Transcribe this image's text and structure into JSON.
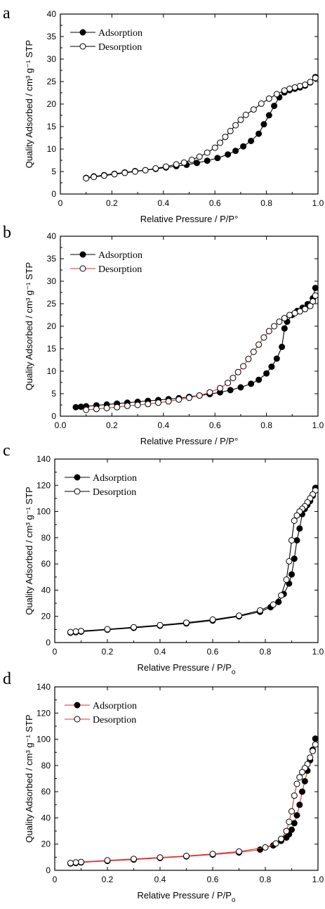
{
  "chart_data": [
    {
      "panel": "a",
      "type": "scatter",
      "xlabel": "Relative Pressure / P/P°",
      "ylabel": "Quality Adsorbed / cm³ g⁻¹ STP",
      "xlim": [
        0,
        1.0
      ],
      "ylim": [
        0,
        40
      ],
      "x_ticks": [
        "0",
        "0.2",
        "0.4",
        "0.6",
        "0.8",
        "1.0"
      ],
      "y_ticks": [
        "0",
        "5",
        "10",
        "15",
        "20",
        "25",
        "30",
        "35",
        "40"
      ],
      "legend_position": "top-left",
      "line_color": "#000000",
      "series": [
        {
          "name": "Adsorption",
          "marker": "filled-circle",
          "x": [
            0.1,
            0.13,
            0.17,
            0.21,
            0.25,
            0.29,
            0.33,
            0.37,
            0.41,
            0.45,
            0.49,
            0.53,
            0.57,
            0.61,
            0.65,
            0.68,
            0.71,
            0.74,
            0.77,
            0.79,
            0.81,
            0.83,
            0.85,
            0.87,
            0.89,
            0.91,
            0.93,
            0.95,
            0.97,
            0.99
          ],
          "y": [
            3.6,
            3.9,
            4.2,
            4.5,
            4.8,
            5.1,
            5.3,
            5.6,
            5.9,
            6.2,
            6.5,
            6.9,
            7.4,
            8.0,
            8.8,
            9.6,
            10.6,
            11.8,
            13.4,
            15.5,
            17.5,
            19.6,
            21.5,
            22.6,
            23.1,
            23.4,
            23.7,
            24.1,
            24.8,
            26.0
          ]
        },
        {
          "name": "Desorption",
          "marker": "open-circle",
          "x": [
            0.99,
            0.97,
            0.95,
            0.93,
            0.91,
            0.89,
            0.87,
            0.84,
            0.81,
            0.78,
            0.75,
            0.72,
            0.7,
            0.68,
            0.66,
            0.64,
            0.62,
            0.6,
            0.57,
            0.54,
            0.51,
            0.48,
            0.45,
            0.41,
            0.37,
            0.33,
            0.29,
            0.25,
            0.21,
            0.17,
            0.13,
            0.1
          ],
          "y": [
            25.8,
            24.9,
            24.3,
            24.0,
            23.7,
            23.4,
            23.0,
            22.2,
            21.2,
            20.1,
            18.8,
            17.6,
            16.5,
            15.3,
            14.0,
            12.7,
            11.4,
            10.3,
            9.2,
            8.3,
            7.6,
            7.0,
            6.6,
            6.1,
            5.7,
            5.3,
            5.0,
            4.7,
            4.4,
            4.1,
            3.8,
            3.5
          ]
        }
      ]
    },
    {
      "panel": "b",
      "type": "scatter",
      "xlabel": "Relative Pressure / P/P°",
      "ylabel": "Quality Adsorbed / cm³ g⁻¹ STP",
      "xlim": [
        0,
        1.0
      ],
      "ylim": [
        0,
        40
      ],
      "x_ticks": [
        "0.0",
        "0.2",
        "0.4",
        "0.6",
        "0.8",
        "1.0"
      ],
      "y_ticks": [
        "0",
        "5",
        "10",
        "15",
        "20",
        "25",
        "30",
        "35",
        "40"
      ],
      "legend_position": "top-left",
      "line_color": "#000000",
      "desorption_line_color": "#e03030",
      "series": [
        {
          "name": "Adsorption",
          "marker": "filled-circle",
          "x": [
            0.06,
            0.08,
            0.1,
            0.14,
            0.18,
            0.22,
            0.26,
            0.3,
            0.34,
            0.38,
            0.42,
            0.46,
            0.5,
            0.54,
            0.58,
            0.62,
            0.66,
            0.7,
            0.74,
            0.77,
            0.8,
            0.82,
            0.84,
            0.86,
            0.87,
            0.88,
            0.9,
            0.92,
            0.94,
            0.96,
            0.98,
            0.99
          ],
          "y": [
            2.0,
            2.1,
            2.2,
            2.4,
            2.6,
            2.8,
            3.0,
            3.2,
            3.4,
            3.6,
            3.8,
            4.0,
            4.3,
            4.6,
            4.9,
            5.3,
            5.8,
            6.4,
            7.2,
            8.1,
            9.5,
            11.0,
            12.8,
            15.4,
            19.5,
            21.0,
            22.5,
            23.4,
            24.1,
            24.9,
            26.2,
            28.5
          ]
        },
        {
          "name": "Desorption",
          "marker": "open-circle",
          "x": [
            0.99,
            0.98,
            0.97,
            0.95,
            0.93,
            0.91,
            0.89,
            0.87,
            0.85,
            0.83,
            0.81,
            0.79,
            0.77,
            0.75,
            0.73,
            0.71,
            0.69,
            0.67,
            0.65,
            0.62,
            0.58,
            0.54,
            0.5,
            0.46,
            0.42,
            0.38,
            0.34,
            0.3,
            0.26,
            0.22,
            0.18,
            0.14,
            0.1
          ],
          "y": [
            26.8,
            25.5,
            24.5,
            23.8,
            23.3,
            22.9,
            22.5,
            21.8,
            21.0,
            20.0,
            18.9,
            17.5,
            15.9,
            14.3,
            12.7,
            11.1,
            9.8,
            8.5,
            7.4,
            6.2,
            5.3,
            4.6,
            4.1,
            3.7,
            3.3,
            3.0,
            2.7,
            2.5,
            2.3,
            2.0,
            1.8,
            1.6,
            1.4
          ]
        }
      ]
    },
    {
      "panel": "c",
      "type": "scatter",
      "xlabel": "Relative Pressure / P/P",
      "xlabel_subscript": "o",
      "ylabel": "Quality Adsorbed / cm³ g⁻¹ STP",
      "xlim": [
        0,
        1.0
      ],
      "ylim": [
        0,
        140
      ],
      "x_ticks": [
        "0",
        "0.2",
        "0.4",
        "0.6",
        "0.8",
        "1.0"
      ],
      "y_ticks": [
        "0",
        "20",
        "40",
        "60",
        "80",
        "100",
        "120",
        "140"
      ],
      "legend_position": "top-left",
      "line_color": "#000000",
      "series": [
        {
          "name": "Adsorption",
          "marker": "filled-circle",
          "x": [
            0.06,
            0.08,
            0.1,
            0.2,
            0.3,
            0.4,
            0.5,
            0.6,
            0.7,
            0.78,
            0.82,
            0.85,
            0.87,
            0.89,
            0.9,
            0.91,
            0.92,
            0.93,
            0.94,
            0.95,
            0.96,
            0.97,
            0.98,
            0.99
          ],
          "y": [
            7.5,
            7.9,
            8.3,
            9.8,
            11.2,
            12.8,
            14.6,
            16.8,
            20.0,
            23.5,
            27.0,
            31.0,
            37.0,
            45.0,
            52.0,
            64.0,
            78.0,
            87.0,
            98.0,
            102.0,
            105.0,
            108.0,
            112.0,
            118.0
          ]
        },
        {
          "name": "Desorption",
          "marker": "open-circle",
          "x": [
            0.99,
            0.98,
            0.97,
            0.96,
            0.95,
            0.94,
            0.93,
            0.92,
            0.91,
            0.9,
            0.89,
            0.88,
            0.86,
            0.83,
            0.78,
            0.7,
            0.6,
            0.5,
            0.4,
            0.3,
            0.2,
            0.1,
            0.08,
            0.06
          ],
          "y": [
            116.0,
            113.0,
            110.0,
            107.0,
            104.0,
            102.0,
            100.0,
            97.0,
            93.0,
            78.0,
            62.0,
            48.0,
            36.0,
            29.0,
            24.5,
            20.5,
            17.5,
            15.2,
            13.3,
            11.7,
            10.2,
            8.8,
            8.4,
            8.0
          ]
        }
      ]
    },
    {
      "panel": "d",
      "type": "scatter",
      "xlabel": "Relative Pressure / P/P",
      "xlabel_subscript": "o",
      "ylabel": "Quality Adsorbed / cm³ g⁻¹ STP",
      "xlim": [
        0,
        1.0
      ],
      "ylim": [
        0,
        140
      ],
      "x_ticks": [
        "0",
        "0.2",
        "0.4",
        "0.6",
        "0.8",
        "1.0"
      ],
      "y_ticks": [
        "0",
        "20",
        "40",
        "60",
        "80",
        "100",
        "120",
        "140"
      ],
      "legend_position": "top-left",
      "line_color": "#e03030",
      "series": [
        {
          "name": "Adsorption",
          "marker": "filled-circle",
          "x": [
            0.06,
            0.08,
            0.1,
            0.2,
            0.3,
            0.4,
            0.5,
            0.6,
            0.7,
            0.78,
            0.83,
            0.86,
            0.88,
            0.89,
            0.9,
            0.91,
            0.92,
            0.93,
            0.94,
            0.95,
            0.96,
            0.97,
            0.98,
            0.99
          ],
          "y": [
            5.2,
            5.6,
            6.0,
            7.2,
            8.2,
            9.4,
            10.6,
            12.0,
            13.6,
            15.8,
            19.0,
            22.5,
            25.0,
            27.5,
            31.0,
            36.0,
            42.0,
            50.0,
            60.0,
            68.0,
            76.0,
            84.0,
            92.0,
            100.5
          ]
        },
        {
          "name": "Desorption",
          "marker": "open-circle",
          "x": [
            0.99,
            0.98,
            0.97,
            0.96,
            0.95,
            0.94,
            0.93,
            0.92,
            0.91,
            0.9,
            0.89,
            0.88,
            0.86,
            0.84,
            0.8,
            0.7,
            0.6,
            0.5,
            0.4,
            0.3,
            0.2,
            0.1,
            0.08,
            0.06
          ],
          "y": [
            96.0,
            91.0,
            86.0,
            81.0,
            78.0,
            75.0,
            71.0,
            66.0,
            57.0,
            45.0,
            37.0,
            30.0,
            24.0,
            20.5,
            17.5,
            14.3,
            12.5,
            11.0,
            9.8,
            8.7,
            7.6,
            6.4,
            6.0,
            5.6
          ]
        }
      ]
    }
  ]
}
